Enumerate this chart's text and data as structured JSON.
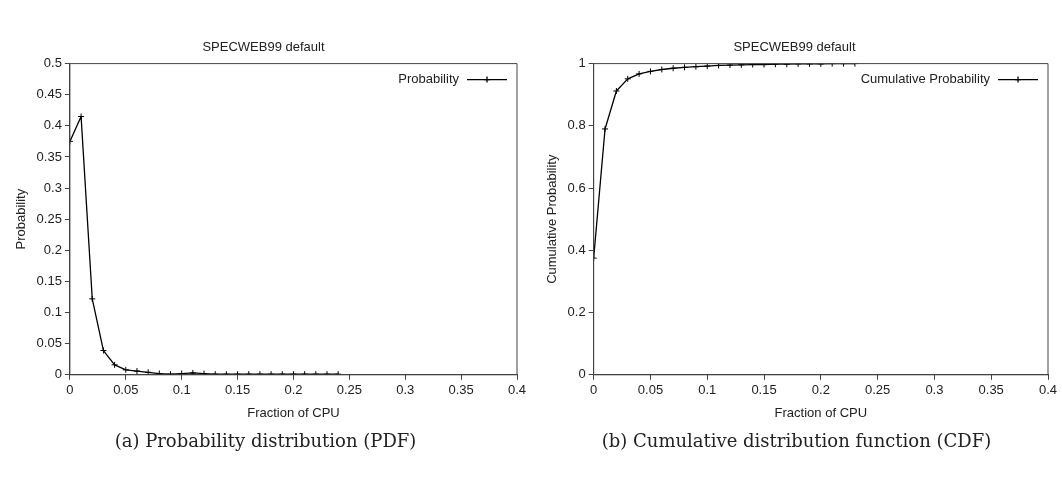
{
  "chart_data": [
    {
      "type": "line",
      "title": "SPECWEB99 default",
      "xlabel": "Fraction of CPU",
      "ylabel": "Probability",
      "legend": "top right",
      "marker": "cross",
      "grid": false,
      "x": [
        0,
        0.01,
        0.02,
        0.03,
        0.04,
        0.05,
        0.06,
        0.07,
        0.08,
        0.09,
        0.1,
        0.11,
        0.12,
        0.13,
        0.14,
        0.15,
        0.16,
        0.17,
        0.18,
        0.19,
        0.2,
        0.21,
        0.22,
        0.23,
        0.24
      ],
      "series": [
        {
          "name": "Probability",
          "color": "#000000",
          "values": [
            0.375,
            0.415,
            0.122,
            0.039,
            0.016,
            0.008,
            0.006,
            0.004,
            0.002,
            0.001,
            0.002,
            0.003,
            0.002,
            0.001,
            0.001,
            0.001,
            0.001,
            0.001,
            0.001,
            0.001,
            0.001,
            0.001,
            0.001,
            0.001,
            0.001
          ]
        }
      ],
      "xlim": [
        0,
        0.4
      ],
      "xticks": [
        0,
        0.05,
        0.1,
        0.15,
        0.2,
        0.25,
        0.3,
        0.35,
        0.4
      ],
      "ylim": [
        0,
        0.5
      ],
      "yticks": [
        0,
        0.05,
        0.1,
        0.15,
        0.2,
        0.25,
        0.3,
        0.35,
        0.4,
        0.45,
        0.5
      ],
      "annotations": [
        "(a) Probability distribution (PDF)"
      ]
    },
    {
      "type": "line",
      "title": "SPECWEB99 default",
      "xlabel": "Fraction of CPU",
      "ylabel": "Cumulative Probability",
      "legend": "top right",
      "marker": "cross",
      "grid": false,
      "x": [
        0,
        0.01,
        0.02,
        0.03,
        0.04,
        0.05,
        0.06,
        0.07,
        0.08,
        0.09,
        0.1,
        0.11,
        0.12,
        0.13,
        0.14,
        0.15,
        0.16,
        0.17,
        0.18,
        0.19,
        0.2,
        0.21,
        0.22,
        0.23
      ],
      "series": [
        {
          "name": "Cumulative Probability",
          "color": "#000000",
          "values": [
            0.375,
            0.79,
            0.912,
            0.951,
            0.967,
            0.975,
            0.981,
            0.985,
            0.988,
            0.99,
            0.992,
            0.994,
            0.995,
            0.996,
            0.997,
            0.997,
            0.998,
            0.998,
            0.999,
            0.999,
            0.999,
            1,
            1,
            1
          ]
        }
      ],
      "xlim": [
        0,
        0.4
      ],
      "xticks": [
        0,
        0.05,
        0.1,
        0.15,
        0.2,
        0.25,
        0.3,
        0.35,
        0.4
      ],
      "ylim": [
        0,
        1
      ],
      "yticks": [
        0,
        0.2,
        0.4,
        0.6,
        0.8,
        1
      ],
      "annotations": [
        "(b) Cumulative distribution function (CDF)"
      ]
    }
  ]
}
